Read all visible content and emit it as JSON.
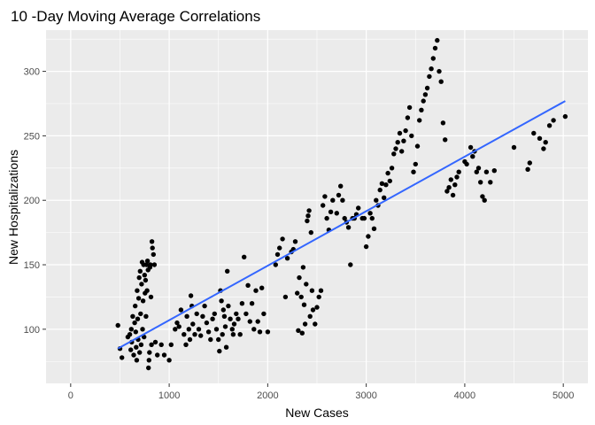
{
  "chart_data": {
    "type": "scatter",
    "title": "10 -Day Moving Average Correlations",
    "xlabel": "New  Cases",
    "ylabel": "New Hospitalizations",
    "xlim": [
      -250,
      5250
    ],
    "ylim": [
      58,
      332
    ],
    "x_ticks": [
      0,
      1000,
      2000,
      3000,
      4000,
      5000
    ],
    "x_tick_labels": [
      "0",
      "1000",
      "2000",
      "3000",
      "4000",
      "5000"
    ],
    "y_ticks": [
      100,
      150,
      200,
      250,
      300
    ],
    "y_tick_labels": [
      "100",
      "150",
      "200",
      "250",
      "300"
    ],
    "grid": true,
    "panel_color": "#ebebeb",
    "point_color": "#000000",
    "fit_color": "#3366ff",
    "fit_line": {
      "x": [
        480,
        5020
      ],
      "y": [
        85,
        277
      ]
    },
    "points": [
      [
        480,
        103
      ],
      [
        500,
        85
      ],
      [
        520,
        78
      ],
      [
        580,
        94
      ],
      [
        600,
        96
      ],
      [
        610,
        84
      ],
      [
        615,
        100
      ],
      [
        620,
        90
      ],
      [
        630,
        110
      ],
      [
        640,
        80
      ],
      [
        650,
        105
      ],
      [
        655,
        118
      ],
      [
        660,
        98
      ],
      [
        665,
        86
      ],
      [
        670,
        76
      ],
      [
        675,
        130
      ],
      [
        680,
        108
      ],
      [
        685,
        92
      ],
      [
        690,
        124
      ],
      [
        695,
        140
      ],
      [
        700,
        82
      ],
      [
        705,
        145
      ],
      [
        710,
        112
      ],
      [
        715,
        88
      ],
      [
        720,
        135
      ],
      [
        725,
        152
      ],
      [
        730,
        100
      ],
      [
        735,
        122
      ],
      [
        740,
        150
      ],
      [
        745,
        94
      ],
      [
        750,
        142
      ],
      [
        755,
        128
      ],
      [
        760,
        138
      ],
      [
        765,
        110
      ],
      [
        770,
        150
      ],
      [
        775,
        130
      ],
      [
        780,
        153
      ],
      [
        785,
        146
      ],
      [
        790,
        70
      ],
      [
        795,
        76
      ],
      [
        800,
        82
      ],
      [
        805,
        148
      ],
      [
        810,
        150
      ],
      [
        815,
        125
      ],
      [
        820,
        88
      ],
      [
        825,
        168
      ],
      [
        830,
        163
      ],
      [
        840,
        158
      ],
      [
        850,
        150
      ],
      [
        860,
        90
      ],
      [
        880,
        80
      ],
      [
        920,
        88
      ],
      [
        950,
        80
      ],
      [
        1000,
        76
      ],
      [
        1020,
        88
      ],
      [
        1060,
        100
      ],
      [
        1080,
        105
      ],
      [
        1100,
        102
      ],
      [
        1120,
        115
      ],
      [
        1150,
        96
      ],
      [
        1170,
        88
      ],
      [
        1180,
        110
      ],
      [
        1200,
        100
      ],
      [
        1210,
        92
      ],
      [
        1220,
        126
      ],
      [
        1230,
        118
      ],
      [
        1240,
        104
      ],
      [
        1260,
        96
      ],
      [
        1280,
        112
      ],
      [
        1300,
        100
      ],
      [
        1320,
        95
      ],
      [
        1340,
        110
      ],
      [
        1360,
        118
      ],
      [
        1380,
        105
      ],
      [
        1400,
        98
      ],
      [
        1420,
        92
      ],
      [
        1440,
        108
      ],
      [
        1460,
        112
      ],
      [
        1480,
        100
      ],
      [
        1500,
        92
      ],
      [
        1510,
        83
      ],
      [
        1520,
        130
      ],
      [
        1530,
        122
      ],
      [
        1540,
        96
      ],
      [
        1550,
        115
      ],
      [
        1560,
        110
      ],
      [
        1570,
        102
      ],
      [
        1580,
        86
      ],
      [
        1590,
        145
      ],
      [
        1600,
        118
      ],
      [
        1620,
        108
      ],
      [
        1640,
        100
      ],
      [
        1650,
        96
      ],
      [
        1660,
        104
      ],
      [
        1680,
        112
      ],
      [
        1700,
        108
      ],
      [
        1720,
        96
      ],
      [
        1740,
        120
      ],
      [
        1760,
        156
      ],
      [
        1780,
        112
      ],
      [
        1800,
        134
      ],
      [
        1820,
        106
      ],
      [
        1840,
        120
      ],
      [
        1860,
        100
      ],
      [
        1880,
        130
      ],
      [
        1900,
        106
      ],
      [
        1920,
        98
      ],
      [
        1940,
        132
      ],
      [
        1960,
        112
      ],
      [
        2000,
        98
      ],
      [
        2080,
        150
      ],
      [
        2100,
        158
      ],
      [
        2120,
        163
      ],
      [
        2150,
        170
      ],
      [
        2180,
        125
      ],
      [
        2200,
        155
      ],
      [
        2240,
        160
      ],
      [
        2260,
        162
      ],
      [
        2280,
        168
      ],
      [
        2300,
        128
      ],
      [
        2310,
        99
      ],
      [
        2320,
        140
      ],
      [
        2340,
        125
      ],
      [
        2350,
        97
      ],
      [
        2360,
        148
      ],
      [
        2370,
        119
      ],
      [
        2380,
        104
      ],
      [
        2390,
        135
      ],
      [
        2400,
        184
      ],
      [
        2410,
        188
      ],
      [
        2420,
        192
      ],
      [
        2430,
        110
      ],
      [
        2440,
        175
      ],
      [
        2450,
        130
      ],
      [
        2460,
        115
      ],
      [
        2480,
        104
      ],
      [
        2500,
        117
      ],
      [
        2520,
        125
      ],
      [
        2540,
        130
      ],
      [
        2560,
        196
      ],
      [
        2580,
        203
      ],
      [
        2600,
        186
      ],
      [
        2620,
        177
      ],
      [
        2640,
        191
      ],
      [
        2660,
        200
      ],
      [
        2700,
        190
      ],
      [
        2720,
        204
      ],
      [
        2740,
        211
      ],
      [
        2760,
        200
      ],
      [
        2780,
        186
      ],
      [
        2800,
        183
      ],
      [
        2820,
        179
      ],
      [
        2840,
        150
      ],
      [
        2860,
        186
      ],
      [
        2880,
        186
      ],
      [
        2900,
        189
      ],
      [
        2920,
        194
      ],
      [
        2960,
        186
      ],
      [
        2980,
        186
      ],
      [
        3000,
        164
      ],
      [
        3020,
        172
      ],
      [
        3040,
        190
      ],
      [
        3060,
        186
      ],
      [
        3080,
        178
      ],
      [
        3100,
        200
      ],
      [
        3120,
        196
      ],
      [
        3140,
        208
      ],
      [
        3160,
        213
      ],
      [
        3180,
        202
      ],
      [
        3200,
        212
      ],
      [
        3220,
        221
      ],
      [
        3240,
        215
      ],
      [
        3260,
        225
      ],
      [
        3280,
        236
      ],
      [
        3300,
        240
      ],
      [
        3320,
        245
      ],
      [
        3340,
        252
      ],
      [
        3360,
        238
      ],
      [
        3380,
        246
      ],
      [
        3400,
        254
      ],
      [
        3420,
        264
      ],
      [
        3440,
        272
      ],
      [
        3460,
        250
      ],
      [
        3480,
        222
      ],
      [
        3500,
        228
      ],
      [
        3520,
        242
      ],
      [
        3540,
        262
      ],
      [
        3560,
        270
      ],
      [
        3580,
        277
      ],
      [
        3600,
        282
      ],
      [
        3620,
        287
      ],
      [
        3640,
        296
      ],
      [
        3660,
        302
      ],
      [
        3680,
        310
      ],
      [
        3700,
        318
      ],
      [
        3720,
        324
      ],
      [
        3740,
        300
      ],
      [
        3760,
        292
      ],
      [
        3780,
        260
      ],
      [
        3800,
        247
      ],
      [
        3820,
        207
      ],
      [
        3840,
        210
      ],
      [
        3860,
        216
      ],
      [
        3880,
        204
      ],
      [
        3900,
        212
      ],
      [
        3920,
        218
      ],
      [
        3940,
        222
      ],
      [
        4000,
        230
      ],
      [
        4020,
        228
      ],
      [
        4060,
        241
      ],
      [
        4080,
        234
      ],
      [
        4100,
        238
      ],
      [
        4120,
        222
      ],
      [
        4140,
        225
      ],
      [
        4160,
        214
      ],
      [
        4180,
        203
      ],
      [
        4200,
        200
      ],
      [
        4220,
        222
      ],
      [
        4260,
        214
      ],
      [
        4300,
        223
      ],
      [
        4500,
        241
      ],
      [
        4640,
        224
      ],
      [
        4660,
        229
      ],
      [
        4700,
        252
      ],
      [
        4760,
        248
      ],
      [
        4800,
        240
      ],
      [
        4820,
        245
      ],
      [
        4860,
        258
      ],
      [
        4900,
        262
      ],
      [
        5020,
        265
      ]
    ]
  }
}
